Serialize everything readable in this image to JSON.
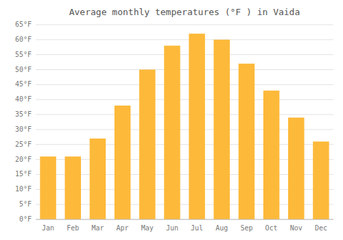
{
  "chart_data": {
    "type": "bar",
    "title": "Average monthly temperatures (°F ) in Vaida",
    "categories": [
      "Jan",
      "Feb",
      "Mar",
      "Apr",
      "May",
      "Jun",
      "Jul",
      "Aug",
      "Sep",
      "Oct",
      "Nov",
      "Dec"
    ],
    "values": [
      21,
      21,
      27,
      38,
      50,
      58,
      62,
      60,
      52,
      43,
      34,
      26
    ],
    "color": "#FDB93A",
    "ylim": [
      0,
      65
    ],
    "yticks": [
      {
        "value": 0,
        "label": "0°F"
      },
      {
        "value": 5,
        "label": "5°F"
      },
      {
        "value": 10,
        "label": "10°F"
      },
      {
        "value": 15,
        "label": "15°F"
      },
      {
        "value": 20,
        "label": "20°F"
      },
      {
        "value": 25,
        "label": "25°F"
      },
      {
        "value": 30,
        "label": "30°F"
      },
      {
        "value": 35,
        "label": "35°F"
      },
      {
        "value": 40,
        "label": "40°F"
      },
      {
        "value": 45,
        "label": "45°F"
      },
      {
        "value": 50,
        "label": "50°F"
      },
      {
        "value": 55,
        "label": "55°F"
      },
      {
        "value": 60,
        "label": "60°F"
      },
      {
        "value": 65,
        "label": "65°F"
      }
    ],
    "grid": true
  }
}
